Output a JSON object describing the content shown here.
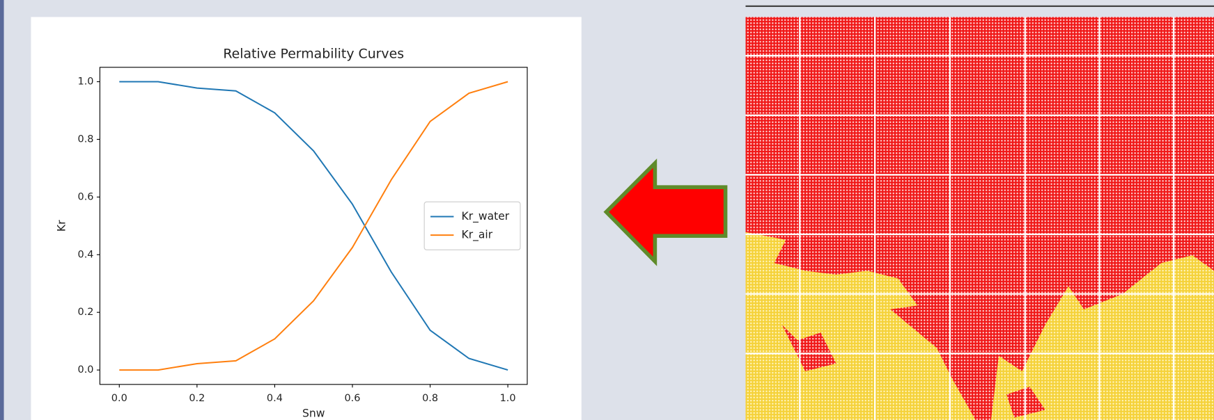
{
  "chart_data": {
    "type": "line",
    "title": "Relative Permability Curves",
    "x_label": "Snw",
    "y_label": "Kr",
    "x": [
      0.0,
      0.1,
      0.2,
      0.3,
      0.4,
      0.5,
      0.6,
      0.7,
      0.8,
      0.9,
      1.0
    ],
    "series": [
      {
        "name": "Kr_water",
        "color": "#1f77b4",
        "values": [
          1.0,
          1.0,
          0.978,
          0.968,
          0.892,
          0.76,
          0.575,
          0.34,
          0.138,
          0.04,
          0.0
        ]
      },
      {
        "name": "Kr_air",
        "color": "#ff7f0e",
        "values": [
          0.0,
          0.0,
          0.022,
          0.032,
          0.108,
          0.24,
          0.425,
          0.66,
          0.862,
          0.96,
          1.0
        ]
      }
    ],
    "xlim": [
      -0.05,
      1.05
    ],
    "ylim": [
      -0.05,
      1.05
    ],
    "xticks": [
      {
        "value": 0,
        "label": "0.0"
      },
      {
        "value": 0.2,
        "label": "0.2"
      },
      {
        "value": 0.4,
        "label": "0.4"
      },
      {
        "value": 0.6,
        "label": "0.6"
      },
      {
        "value": 0.8,
        "label": "0.8"
      },
      {
        "value": 1,
        "label": "1.0"
      }
    ],
    "yticks": [
      {
        "value": 0,
        "label": "0.0"
      },
      {
        "value": 0.2,
        "label": "0.2"
      },
      {
        "value": 0.4,
        "label": "0.4"
      },
      {
        "value": 0.6,
        "label": "0.6"
      },
      {
        "value": 0.8,
        "label": "0.8"
      },
      {
        "value": 1,
        "label": "1.0"
      }
    ],
    "grid": false,
    "legend": "center right"
  }
}
